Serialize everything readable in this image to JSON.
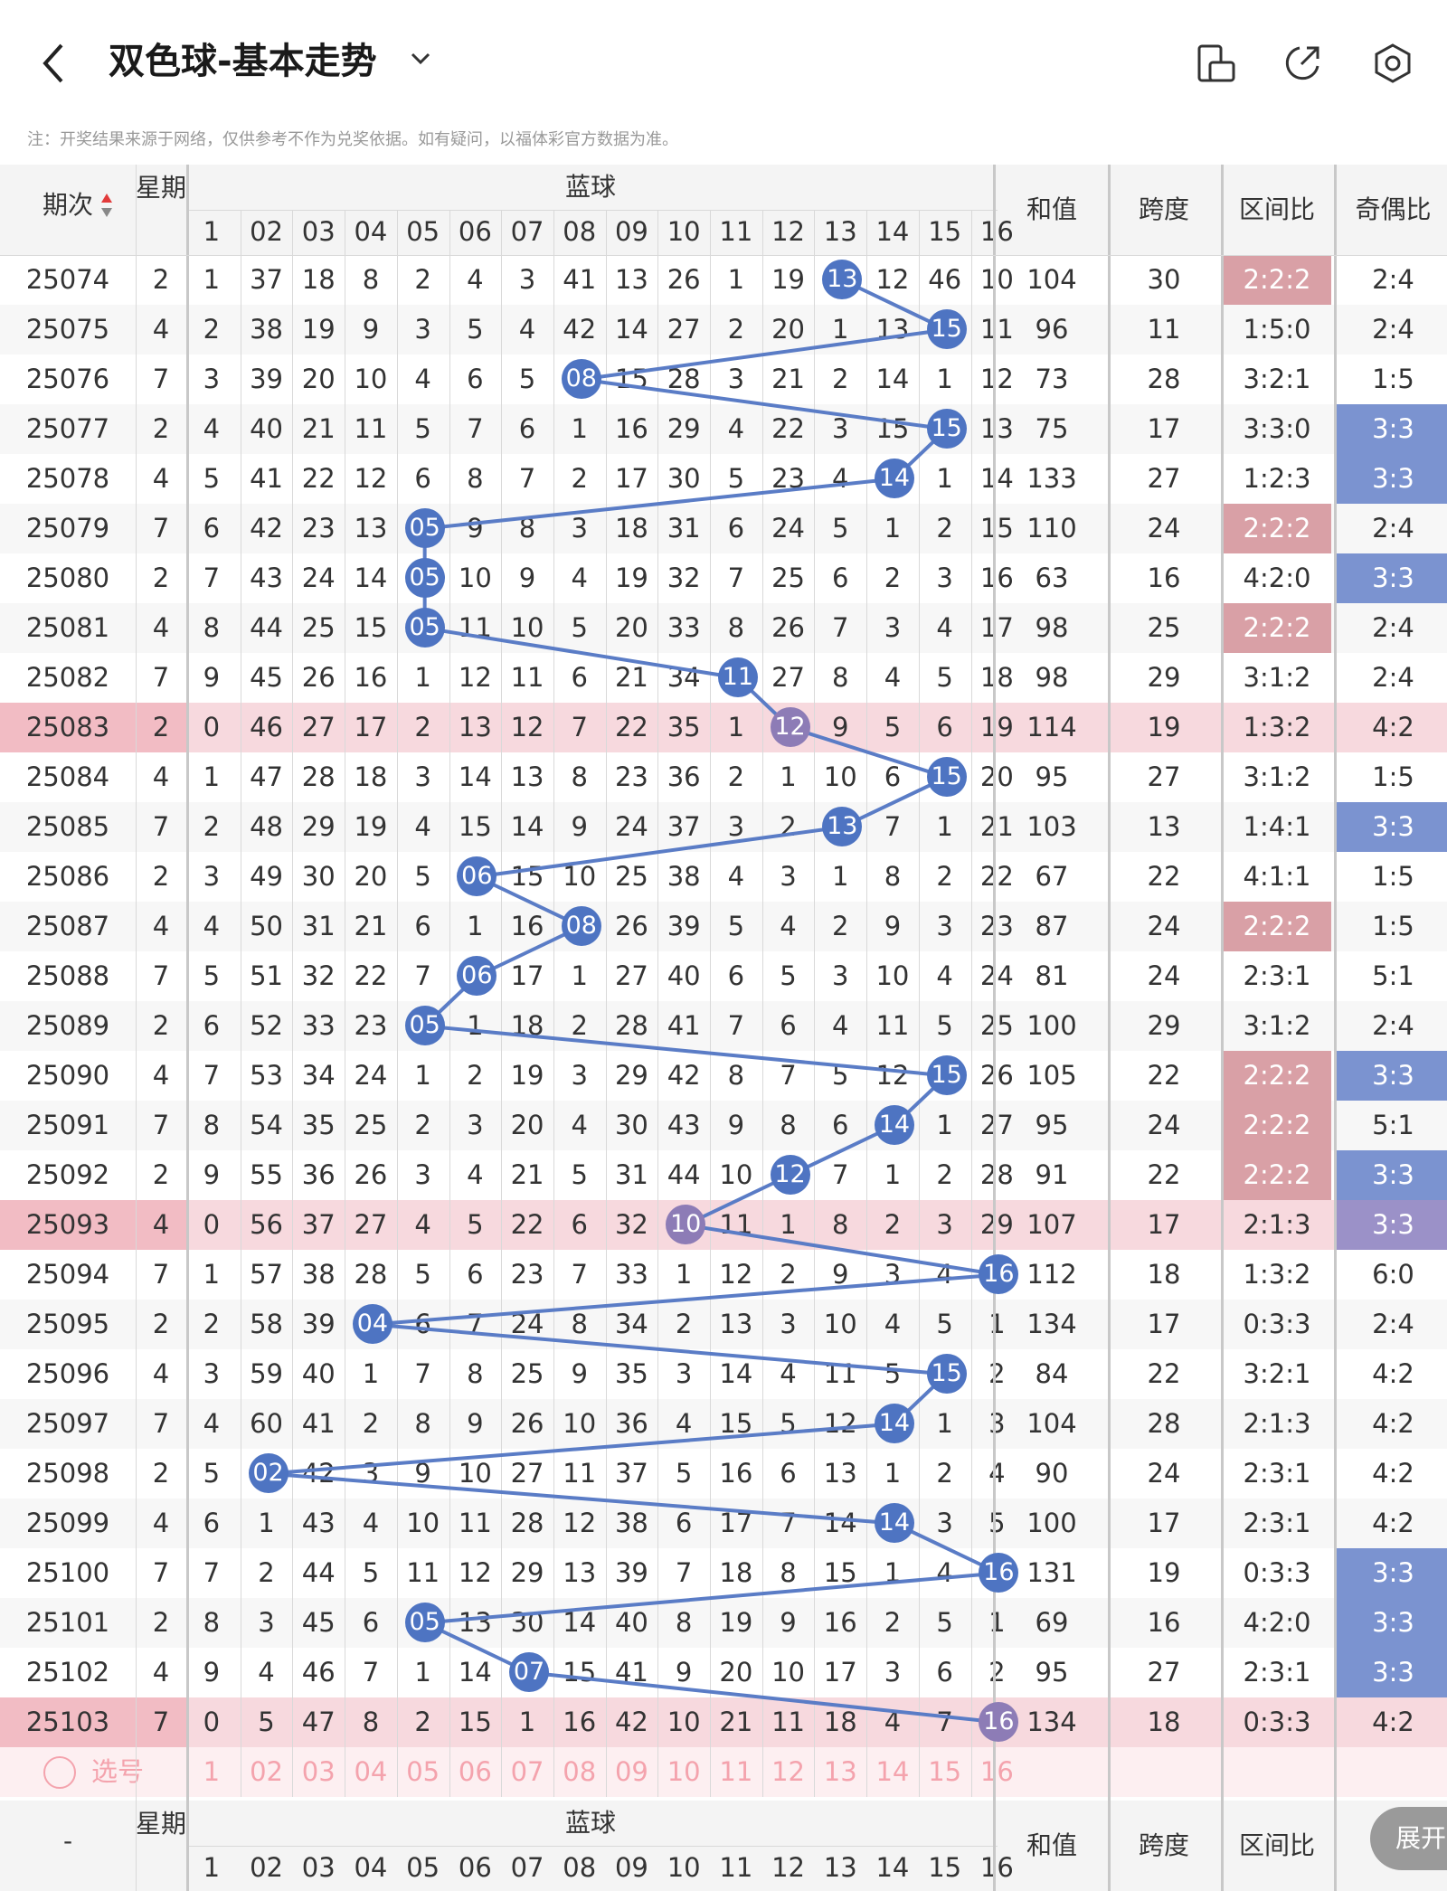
{
  "header": {
    "title": "双色球-基本走势",
    "back_icon": "chevron-left-icon",
    "dropdown_icon": "chevron-down-icon",
    "actions": [
      "phone-orientation-icon",
      "share-icon",
      "settings-icon"
    ]
  },
  "notice": "注：开奖结果来源于网络，仅供参考不作为兑奖依据。如有疑问，以福体彩官方数据为准。",
  "columns": {
    "period": "期次",
    "weekday": "星期",
    "blue_group": "蓝球",
    "blue_nums": [
      "1",
      "02",
      "03",
      "04",
      "05",
      "06",
      "07",
      "08",
      "09",
      "10",
      "11",
      "12",
      "13",
      "14",
      "15",
      "16"
    ],
    "sum": "和值",
    "span": "跨度",
    "zone_ratio": "区间比",
    "odd_even": "奇偶比"
  },
  "colors": {
    "ball_blue": "#4e74c2",
    "ball_purple": "#8d7cb6",
    "zone_red": "#d9a0a6",
    "zone_blue": "#7b93d0",
    "highlight_row": "#f7d9de",
    "select_red": "#f4a3ad"
  },
  "rows": [
    {
      "period": "25074",
      "week": "2",
      "omit": [
        "1",
        "37",
        "18",
        "8",
        "2",
        "4",
        "3",
        "41",
        "13",
        "26",
        "1",
        "19",
        "13",
        "12",
        "46",
        "10"
      ],
      "hit": 13,
      "sum": "104",
      "span": "30",
      "zone": "2:2:2",
      "zone_hl": "red",
      "oe": "2:4",
      "oe_hl": ""
    },
    {
      "period": "25075",
      "week": "4",
      "omit": [
        "2",
        "38",
        "19",
        "9",
        "3",
        "5",
        "4",
        "42",
        "14",
        "27",
        "2",
        "20",
        "1",
        "13",
        "15",
        "11"
      ],
      "hit": 15,
      "sum": "96",
      "span": "11",
      "zone": "1:5:0",
      "zone_hl": "",
      "oe": "2:4",
      "oe_hl": ""
    },
    {
      "period": "25076",
      "week": "7",
      "omit": [
        "3",
        "39",
        "20",
        "10",
        "4",
        "6",
        "5",
        "08",
        "15",
        "28",
        "3",
        "21",
        "2",
        "14",
        "1",
        "12"
      ],
      "hit": 8,
      "sum": "73",
      "span": "28",
      "zone": "3:2:1",
      "zone_hl": "",
      "oe": "1:5",
      "oe_hl": ""
    },
    {
      "period": "25077",
      "week": "2",
      "omit": [
        "4",
        "40",
        "21",
        "11",
        "5",
        "7",
        "6",
        "1",
        "16",
        "29",
        "4",
        "22",
        "3",
        "15",
        "15",
        "13"
      ],
      "hit": 15,
      "sum": "75",
      "span": "17",
      "zone": "3:3:0",
      "zone_hl": "",
      "oe": "3:3",
      "oe_hl": "blue"
    },
    {
      "period": "25078",
      "week": "4",
      "omit": [
        "5",
        "41",
        "22",
        "12",
        "6",
        "8",
        "7",
        "2",
        "17",
        "30",
        "5",
        "23",
        "4",
        "14",
        "1",
        "14"
      ],
      "hit": 14,
      "sum": "133",
      "span": "27",
      "zone": "1:2:3",
      "zone_hl": "",
      "oe": "3:3",
      "oe_hl": "blue"
    },
    {
      "period": "25079",
      "week": "7",
      "omit": [
        "6",
        "42",
        "23",
        "13",
        "05",
        "9",
        "8",
        "3",
        "18",
        "31",
        "6",
        "24",
        "5",
        "1",
        "2",
        "15"
      ],
      "hit": 5,
      "sum": "110",
      "span": "24",
      "zone": "2:2:2",
      "zone_hl": "red",
      "oe": "2:4",
      "oe_hl": ""
    },
    {
      "period": "25080",
      "week": "2",
      "omit": [
        "7",
        "43",
        "24",
        "14",
        "05",
        "10",
        "9",
        "4",
        "19",
        "32",
        "7",
        "25",
        "6",
        "2",
        "3",
        "16"
      ],
      "hit": 5,
      "sum": "63",
      "span": "16",
      "zone": "4:2:0",
      "zone_hl": "",
      "oe": "3:3",
      "oe_hl": "blue"
    },
    {
      "period": "25081",
      "week": "4",
      "omit": [
        "8",
        "44",
        "25",
        "15",
        "05",
        "11",
        "10",
        "5",
        "20",
        "33",
        "8",
        "26",
        "7",
        "3",
        "4",
        "17"
      ],
      "hit": 5,
      "sum": "98",
      "span": "25",
      "zone": "2:2:2",
      "zone_hl": "red",
      "oe": "2:4",
      "oe_hl": ""
    },
    {
      "period": "25082",
      "week": "7",
      "omit": [
        "9",
        "45",
        "26",
        "16",
        "1",
        "12",
        "11",
        "6",
        "21",
        "34",
        "11",
        "27",
        "8",
        "4",
        "5",
        "18"
      ],
      "hit": 11,
      "sum": "98",
      "span": "29",
      "zone": "3:1:2",
      "zone_hl": "",
      "oe": "2:4",
      "oe_hl": ""
    },
    {
      "period": "25083",
      "week": "2",
      "omit": [
        "0",
        "46",
        "27",
        "17",
        "2",
        "13",
        "12",
        "7",
        "22",
        "35",
        "1",
        "12",
        "9",
        "5",
        "6",
        "19"
      ],
      "hit": 12,
      "sum": "114",
      "span": "19",
      "zone": "1:3:2",
      "zone_hl": "",
      "oe": "4:2",
      "oe_hl": "",
      "hl": true
    },
    {
      "period": "25084",
      "week": "4",
      "omit": [
        "1",
        "47",
        "28",
        "18",
        "3",
        "14",
        "13",
        "8",
        "23",
        "36",
        "2",
        "1",
        "10",
        "6",
        "15",
        "20"
      ],
      "hit": 15,
      "sum": "95",
      "span": "27",
      "zone": "3:1:2",
      "zone_hl": "",
      "oe": "1:5",
      "oe_hl": ""
    },
    {
      "period": "25085",
      "week": "7",
      "omit": [
        "2",
        "48",
        "29",
        "19",
        "4",
        "15",
        "14",
        "9",
        "24",
        "37",
        "3",
        "2",
        "13",
        "7",
        "1",
        "21"
      ],
      "hit": 13,
      "sum": "103",
      "span": "13",
      "zone": "1:4:1",
      "zone_hl": "",
      "oe": "3:3",
      "oe_hl": "blue"
    },
    {
      "period": "25086",
      "week": "2",
      "omit": [
        "3",
        "49",
        "30",
        "20",
        "5",
        "06",
        "15",
        "10",
        "25",
        "38",
        "4",
        "3",
        "1",
        "8",
        "2",
        "22"
      ],
      "hit": 6,
      "sum": "67",
      "span": "22",
      "zone": "4:1:1",
      "zone_hl": "",
      "oe": "1:5",
      "oe_hl": ""
    },
    {
      "period": "25087",
      "week": "4",
      "omit": [
        "4",
        "50",
        "31",
        "21",
        "6",
        "1",
        "16",
        "08",
        "26",
        "39",
        "5",
        "4",
        "2",
        "9",
        "3",
        "23"
      ],
      "hit": 8,
      "sum": "87",
      "span": "24",
      "zone": "2:2:2",
      "zone_hl": "red",
      "oe": "1:5",
      "oe_hl": ""
    },
    {
      "period": "25088",
      "week": "7",
      "omit": [
        "5",
        "51",
        "32",
        "22",
        "7",
        "06",
        "17",
        "1",
        "27",
        "40",
        "6",
        "5",
        "3",
        "10",
        "4",
        "24"
      ],
      "hit": 6,
      "sum": "81",
      "span": "24",
      "zone": "2:3:1",
      "zone_hl": "",
      "oe": "5:1",
      "oe_hl": ""
    },
    {
      "period": "25089",
      "week": "2",
      "omit": [
        "6",
        "52",
        "33",
        "23",
        "05",
        "1",
        "18",
        "2",
        "28",
        "41",
        "7",
        "6",
        "4",
        "11",
        "5",
        "25"
      ],
      "hit": 5,
      "sum": "100",
      "span": "29",
      "zone": "3:1:2",
      "zone_hl": "",
      "oe": "2:4",
      "oe_hl": ""
    },
    {
      "period": "25090",
      "week": "4",
      "omit": [
        "7",
        "53",
        "34",
        "24",
        "1",
        "2",
        "19",
        "3",
        "29",
        "42",
        "8",
        "7",
        "5",
        "12",
        "15",
        "26"
      ],
      "hit": 15,
      "sum": "105",
      "span": "22",
      "zone": "2:2:2",
      "zone_hl": "red",
      "oe": "3:3",
      "oe_hl": "blue"
    },
    {
      "period": "25091",
      "week": "7",
      "omit": [
        "8",
        "54",
        "35",
        "25",
        "2",
        "3",
        "20",
        "4",
        "30",
        "43",
        "9",
        "8",
        "6",
        "14",
        "1",
        "27"
      ],
      "hit": 14,
      "sum": "95",
      "span": "24",
      "zone": "2:2:2",
      "zone_hl": "red",
      "oe": "5:1",
      "oe_hl": ""
    },
    {
      "period": "25092",
      "week": "2",
      "omit": [
        "9",
        "55",
        "36",
        "26",
        "3",
        "4",
        "21",
        "5",
        "31",
        "44",
        "10",
        "12",
        "7",
        "1",
        "2",
        "28"
      ],
      "hit": 12,
      "sum": "91",
      "span": "22",
      "zone": "2:2:2",
      "zone_hl": "red",
      "oe": "3:3",
      "oe_hl": "blue"
    },
    {
      "period": "25093",
      "week": "4",
      "omit": [
        "0",
        "56",
        "37",
        "27",
        "4",
        "5",
        "22",
        "6",
        "32",
        "10",
        "11",
        "1",
        "8",
        "2",
        "3",
        "29"
      ],
      "hit": 10,
      "sum": "107",
      "span": "17",
      "zone": "2:1:3",
      "zone_hl": "",
      "oe": "3:3",
      "oe_hl": "purple",
      "hl": true
    },
    {
      "period": "25094",
      "week": "7",
      "omit": [
        "1",
        "57",
        "38",
        "28",
        "5",
        "6",
        "23",
        "7",
        "33",
        "1",
        "12",
        "2",
        "9",
        "3",
        "4",
        "16"
      ],
      "hit": 16,
      "sum": "112",
      "span": "18",
      "zone": "1:3:2",
      "zone_hl": "",
      "oe": "6:0",
      "oe_hl": ""
    },
    {
      "period": "25095",
      "week": "2",
      "omit": [
        "2",
        "58",
        "39",
        "04",
        "6",
        "7",
        "24",
        "8",
        "34",
        "2",
        "13",
        "3",
        "10",
        "4",
        "5",
        "1"
      ],
      "hit": 4,
      "sum": "134",
      "span": "17",
      "zone": "0:3:3",
      "zone_hl": "",
      "oe": "2:4",
      "oe_hl": ""
    },
    {
      "period": "25096",
      "week": "4",
      "omit": [
        "3",
        "59",
        "40",
        "1",
        "7",
        "8",
        "25",
        "9",
        "35",
        "3",
        "14",
        "4",
        "11",
        "5",
        "15",
        "2"
      ],
      "hit": 15,
      "sum": "84",
      "span": "22",
      "zone": "3:2:1",
      "zone_hl": "",
      "oe": "4:2",
      "oe_hl": ""
    },
    {
      "period": "25097",
      "week": "7",
      "omit": [
        "4",
        "60",
        "41",
        "2",
        "8",
        "9",
        "26",
        "10",
        "36",
        "4",
        "15",
        "5",
        "12",
        "14",
        "1",
        "3"
      ],
      "hit": 14,
      "sum": "104",
      "span": "28",
      "zone": "2:1:3",
      "zone_hl": "",
      "oe": "4:2",
      "oe_hl": ""
    },
    {
      "period": "25098",
      "week": "2",
      "omit": [
        "5",
        "02",
        "42",
        "3",
        "9",
        "10",
        "27",
        "11",
        "37",
        "5",
        "16",
        "6",
        "13",
        "1",
        "2",
        "4"
      ],
      "hit": 2,
      "sum": "90",
      "span": "24",
      "zone": "2:3:1",
      "zone_hl": "",
      "oe": "4:2",
      "oe_hl": ""
    },
    {
      "period": "25099",
      "week": "4",
      "omit": [
        "6",
        "1",
        "43",
        "4",
        "10",
        "11",
        "28",
        "12",
        "38",
        "6",
        "17",
        "7",
        "14",
        "14",
        "3",
        "5"
      ],
      "hit": 14,
      "sum": "100",
      "span": "17",
      "zone": "2:3:1",
      "zone_hl": "",
      "oe": "4:2",
      "oe_hl": ""
    },
    {
      "period": "25100",
      "week": "7",
      "omit": [
        "7",
        "2",
        "44",
        "5",
        "11",
        "12",
        "29",
        "13",
        "39",
        "7",
        "18",
        "8",
        "15",
        "1",
        "4",
        "16"
      ],
      "hit": 16,
      "sum": "131",
      "span": "19",
      "zone": "0:3:3",
      "zone_hl": "",
      "oe": "3:3",
      "oe_hl": "blue"
    },
    {
      "period": "25101",
      "week": "2",
      "omit": [
        "8",
        "3",
        "45",
        "6",
        "05",
        "13",
        "30",
        "14",
        "40",
        "8",
        "19",
        "9",
        "16",
        "2",
        "5",
        "1"
      ],
      "hit": 5,
      "sum": "69",
      "span": "16",
      "zone": "4:2:0",
      "zone_hl": "",
      "oe": "3:3",
      "oe_hl": "blue"
    },
    {
      "period": "25102",
      "week": "4",
      "omit": [
        "9",
        "4",
        "46",
        "7",
        "1",
        "14",
        "07",
        "15",
        "41",
        "9",
        "20",
        "10",
        "17",
        "3",
        "6",
        "2"
      ],
      "hit": 7,
      "sum": "95",
      "span": "27",
      "zone": "2:3:1",
      "zone_hl": "",
      "oe": "3:3",
      "oe_hl": "blue"
    },
    {
      "period": "25103",
      "week": "7",
      "omit": [
        "0",
        "5",
        "47",
        "8",
        "2",
        "15",
        "1",
        "16",
        "42",
        "10",
        "21",
        "11",
        "18",
        "4",
        "7",
        "16"
      ],
      "hit": 16,
      "sum": "134",
      "span": "18",
      "zone": "0:3:3",
      "zone_hl": "",
      "oe": "4:2",
      "oe_hl": "",
      "hl": true
    }
  ],
  "select_row": {
    "label": "选号",
    "radio_icon": "radio-circle-icon",
    "nums": [
      "1",
      "02",
      "03",
      "04",
      "05",
      "06",
      "07",
      "08",
      "09",
      "10",
      "11",
      "12",
      "13",
      "14",
      "15",
      "16"
    ]
  },
  "footer_header": {
    "period": "-",
    "weekday": "星期",
    "blue_group": "蓝球",
    "blue_nums": [
      "1",
      "02",
      "03",
      "04",
      "05",
      "06",
      "07",
      "08",
      "09",
      "10",
      "11",
      "12",
      "13",
      "14",
      "15",
      "16"
    ],
    "sum": "和值",
    "span": "跨度",
    "zone_ratio": "区间比",
    "odd_even": "奇"
  },
  "expand_button": "展开"
}
